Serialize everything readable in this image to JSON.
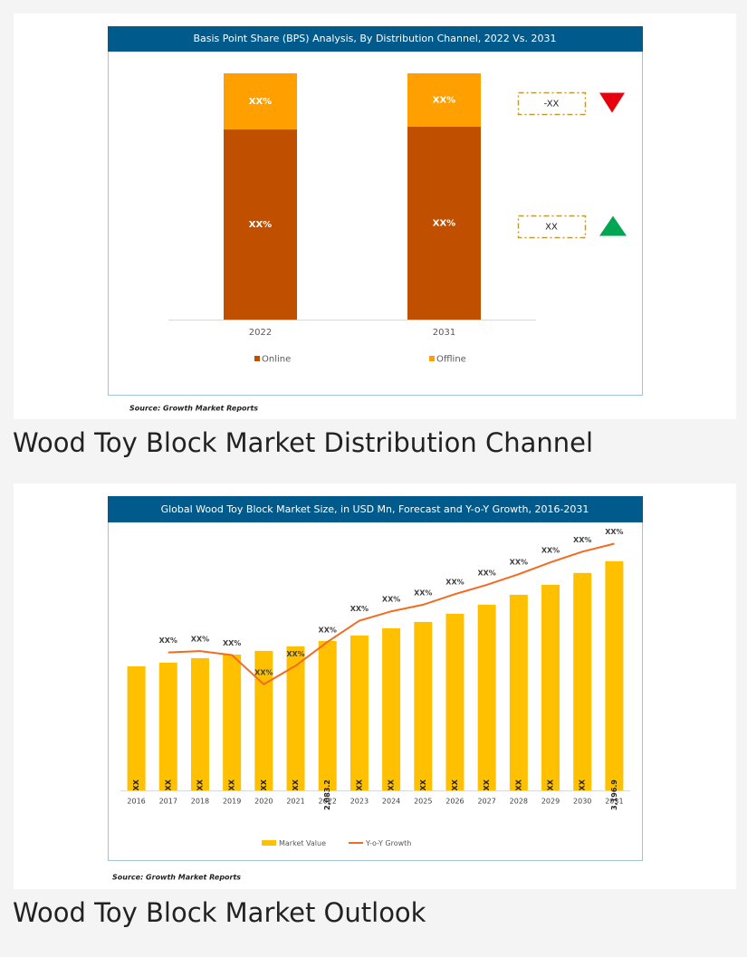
{
  "headings": [
    "Wood Toy Block Market Distribution Channel",
    "Wood Toy Block Market Outlook"
  ],
  "chart_data": [
    {
      "type": "stacked_bar",
      "title": "Basis Point Share (BPS) Analysis, By Distribution Channel, 2022 Vs. 2031",
      "categories": [
        "2022",
        "2031"
      ],
      "series": [
        {
          "name": "Online",
          "color": "#c05000",
          "values": [
            77.2,
            78.3
          ],
          "value_labels": [
            "XX%",
            "XX%"
          ],
          "change": {
            "label": "XX",
            "direction": "up",
            "color": "#00a651"
          }
        },
        {
          "name": "Offline",
          "color": "#ff9f00",
          "values": [
            22.8,
            21.7
          ],
          "value_labels": [
            "XX%",
            "XX%"
          ],
          "change": {
            "label": "-XX",
            "direction": "down",
            "color": "#e8000d"
          }
        }
      ],
      "legend": "bottom",
      "source": "Source: Growth Market Reports"
    },
    {
      "type": "bar_line",
      "title": "Global Wood Toy Block Market Size, in USD Mn, Forecast and Y-o-Y Growth, 2016-2031",
      "categories": [
        "2016",
        "2017",
        "2018",
        "2019",
        "2020",
        "2021",
        "2022",
        "2023",
        "2024",
        "2025",
        "2026",
        "2027",
        "2028",
        "2029",
        "2030",
        "2031"
      ],
      "ylim": [
        0,
        3700
      ],
      "y2lim": [
        0,
        20
      ],
      "series": [
        {
          "name": "Market Value",
          "color": "#ffc000",
          "values": [
            1731,
            1782,
            1845,
            1895,
            1946,
            2009,
            2083.2,
            2161,
            2262,
            2350,
            2464,
            2590,
            2729,
            2868,
            3033,
            3196.9
          ],
          "value_labels": [
            "XX",
            "XX",
            "XX",
            "XX",
            "XX",
            "XX",
            "2,083.2",
            "XX",
            "XX",
            "XX",
            "XX",
            "XX",
            "XX",
            "XX",
            "XX",
            "3,196.9"
          ]
        },
        {
          "name": "Y-o-Y Growth",
          "color": "#f26b21",
          "axis": "y2",
          "values": [
            null,
            10.4,
            10.5,
            10.2,
            8.0,
            9.4,
            11.2,
            12.8,
            13.5,
            14.0,
            14.8,
            15.5,
            16.3,
            17.2,
            18.0,
            18.6
          ],
          "value_labels": [
            null,
            "XX%",
            "XX%",
            "XX%",
            "XX%",
            "XX%",
            "XX%",
            "XX%",
            "XX%",
            "XX%",
            "XX%",
            "XX%",
            "XX%",
            "XX%",
            "XX%",
            "XX%"
          ]
        }
      ],
      "legend": "bottom",
      "source": "Source: Growth Market Reports"
    }
  ]
}
